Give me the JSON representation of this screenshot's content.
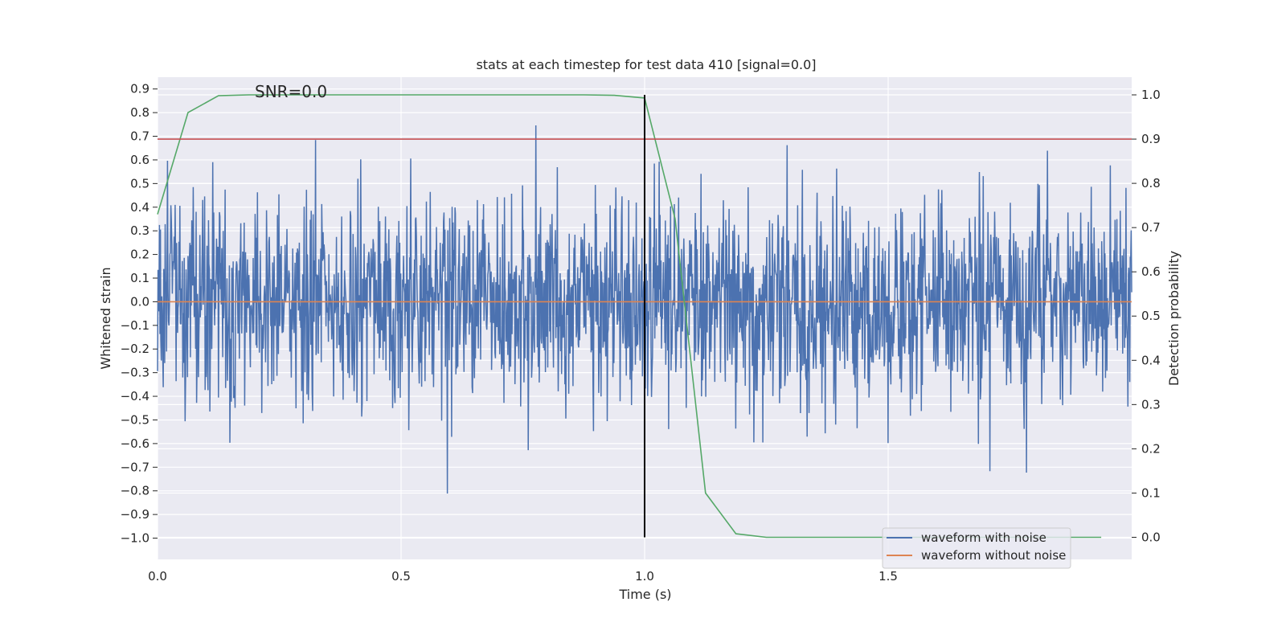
{
  "chart_data": {
    "type": "line",
    "title": "stats at each timestep for test data 410 [signal=0.0]",
    "xlabel": "Time (s)",
    "ylabel": "Whitened strain",
    "y2label": "Detection probability",
    "annotation": "SNR=0.0",
    "xlim": [
      0.0,
      2.0
    ],
    "ylim": [
      -1.09,
      0.95
    ],
    "y2lim": [
      -0.05,
      1.04
    ],
    "x_ticks": [
      "0.0",
      "0.5",
      "1.0",
      "1.5"
    ],
    "y_ticks": [
      "0.9",
      "0.8",
      "0.7",
      "0.6",
      "0.5",
      "0.4",
      "0.3",
      "0.2",
      "0.1",
      "0.0",
      "-0.1",
      "-0.2",
      "-0.3",
      "-0.4",
      "-0.5",
      "-0.6",
      "-0.7",
      "-0.8",
      "-0.9",
      "-1.0"
    ],
    "y2_ticks": [
      "1.0",
      "0.9",
      "0.8",
      "0.7",
      "0.6",
      "0.5",
      "0.4",
      "0.3",
      "0.2",
      "0.1",
      "0.0"
    ],
    "grid": true,
    "legend_position": "lower-right",
    "series": [
      {
        "name": "waveform with noise",
        "axis": "left",
        "color": "#4c72b0",
        "kind": "noise",
        "sample_count": 2048,
        "x_range": [
          0.0,
          2.0
        ],
        "y_range": [
          -0.97,
          0.86
        ]
      },
      {
        "name": "waveform without noise",
        "axis": "left",
        "color": "#dd8452",
        "x": [
          0.0,
          2.0
        ],
        "y": [
          0.0,
          0.0
        ]
      },
      {
        "name": "",
        "axis": "right",
        "color": "#55a868",
        "x": [
          0.0,
          0.0625,
          0.125,
          0.1875,
          0.25,
          0.3125,
          0.375,
          0.4375,
          0.5,
          0.5625,
          0.625,
          0.6875,
          0.75,
          0.8125,
          0.875,
          0.9375,
          1.0,
          1.0625,
          1.125,
          1.1875,
          1.25,
          1.3125,
          1.375,
          1.4375,
          1.5,
          1.5625,
          1.625,
          1.6875,
          1.75,
          1.8125,
          1.875,
          1.9375
        ],
        "y": [
          0.73,
          0.96,
          0.998,
          1.0,
          1.0,
          1.0,
          1.0,
          1.0,
          1.0,
          1.0,
          1.0,
          1.0,
          1.0,
          1.0,
          1.0,
          0.999,
          0.993,
          0.72,
          0.1,
          0.008,
          0.0,
          0.0,
          0.0,
          0.0,
          0.0,
          0.0,
          0.0,
          0.0,
          0.0,
          0.0,
          0.0,
          0.0
        ]
      },
      {
        "name": "",
        "axis": "right",
        "color": "#c44e52",
        "x": [
          0.0,
          2.0
        ],
        "y": [
          0.9,
          0.9
        ]
      },
      {
        "name": "",
        "axis": "right",
        "color": "#000000",
        "x": [
          1.0,
          1.0
        ],
        "y": [
          0.0,
          1.0
        ]
      }
    ]
  }
}
